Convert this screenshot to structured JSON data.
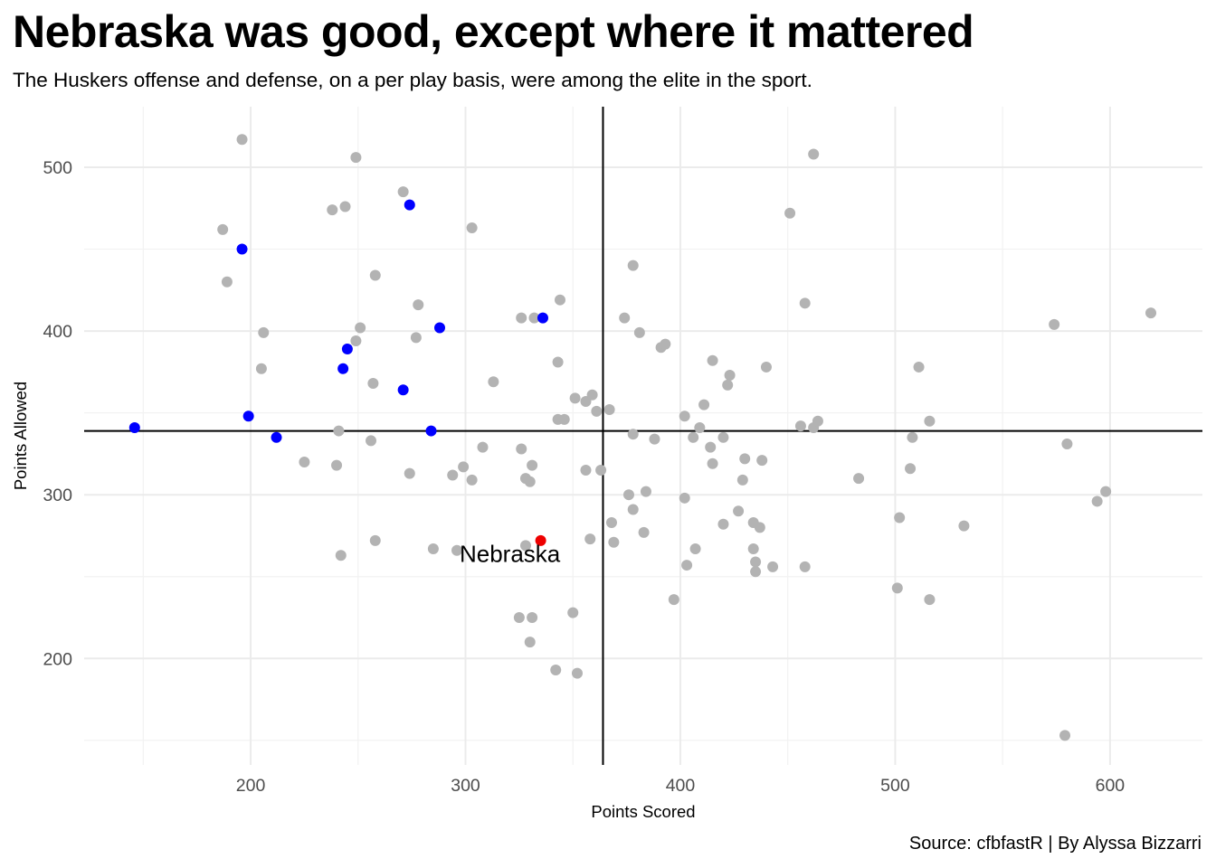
{
  "title": "Nebraska was good, except where it mattered",
  "subtitle": "The Huskers offense and defense, on a per play basis, were among the elite in the sport.",
  "caption": "Source: cfbfastR | By Alyssa Bizzarri",
  "colors": {
    "other_teams": "#b3b3b3",
    "highlight_teams": "#0000ff",
    "nebraska": "#ee0000",
    "reference_lines": "#000000",
    "grid_major": "#ebebeb",
    "grid_minor": "#f2f2f2"
  },
  "chart_data": {
    "type": "scatter",
    "xlabel": "Points Scored",
    "ylabel": "Points Allowed",
    "xlim": [
      122.5,
      643
    ],
    "ylim": [
      135,
      537
    ],
    "x_ticks": [
      200,
      300,
      400,
      500,
      600
    ],
    "y_ticks": [
      200,
      300,
      400,
      500
    ],
    "grid": true,
    "reference_lines": {
      "x": 364,
      "y": 339
    },
    "annotations": [
      {
        "text": "Nebraska",
        "x": 335,
        "y": 264
      }
    ],
    "series": [
      {
        "role": "other",
        "points": [
          [
            196,
            517
          ],
          [
            249,
            506
          ],
          [
            271,
            485
          ],
          [
            244,
            476
          ],
          [
            238,
            474
          ],
          [
            187,
            462
          ],
          [
            303,
            463
          ],
          [
            258,
            434
          ],
          [
            189,
            430
          ],
          [
            278,
            416
          ],
          [
            251,
            402
          ],
          [
            206,
            399
          ],
          [
            249,
            394
          ],
          [
            277,
            396
          ],
          [
            205,
            377
          ],
          [
            257,
            368
          ],
          [
            313,
            369
          ],
          [
            241,
            339
          ],
          [
            256,
            333
          ],
          [
            225,
            320
          ],
          [
            240,
            318
          ],
          [
            274,
            313
          ],
          [
            308,
            329
          ],
          [
            299,
            317
          ],
          [
            294,
            312
          ],
          [
            303,
            309
          ],
          [
            258,
            272
          ],
          [
            242,
            263
          ],
          [
            285,
            267
          ],
          [
            296,
            266
          ],
          [
            326,
            408
          ],
          [
            332,
            408
          ],
          [
            344,
            419
          ],
          [
            343,
            381
          ],
          [
            343,
            346
          ],
          [
            346,
            346
          ],
          [
            351,
            359
          ],
          [
            356,
            357
          ],
          [
            359,
            361
          ],
          [
            361,
            351
          ],
          [
            363,
            315
          ],
          [
            356,
            315
          ],
          [
            367,
            352
          ],
          [
            326,
            328
          ],
          [
            328,
            310
          ],
          [
            330,
            308
          ],
          [
            331,
            318
          ],
          [
            328,
            269
          ],
          [
            358,
            273
          ],
          [
            325,
            225
          ],
          [
            331,
            225
          ],
          [
            330,
            210
          ],
          [
            350,
            228
          ],
          [
            342,
            193
          ],
          [
            352,
            191
          ],
          [
            378,
            440
          ],
          [
            374,
            408
          ],
          [
            381,
            399
          ],
          [
            391,
            390
          ],
          [
            393,
            392
          ],
          [
            415,
            382
          ],
          [
            423,
            373
          ],
          [
            422,
            367
          ],
          [
            411,
            355
          ],
          [
            402,
            348
          ],
          [
            409,
            341
          ],
          [
            406,
            335
          ],
          [
            420,
            335
          ],
          [
            378,
            337
          ],
          [
            388,
            334
          ],
          [
            414,
            329
          ],
          [
            415,
            319
          ],
          [
            430,
            322
          ],
          [
            438,
            321
          ],
          [
            429,
            309
          ],
          [
            376,
            300
          ],
          [
            384,
            302
          ],
          [
            402,
            298
          ],
          [
            378,
            291
          ],
          [
            368,
            283
          ],
          [
            369,
            271
          ],
          [
            383,
            277
          ],
          [
            427,
            290
          ],
          [
            420,
            282
          ],
          [
            434,
            283
          ],
          [
            437,
            280
          ],
          [
            434,
            267
          ],
          [
            407,
            267
          ],
          [
            435,
            259
          ],
          [
            435,
            253
          ],
          [
            443,
            256
          ],
          [
            403,
            257
          ],
          [
            397,
            236
          ],
          [
            440,
            378
          ],
          [
            451,
            472
          ],
          [
            458,
            417
          ],
          [
            462,
            508
          ],
          [
            456,
            342
          ],
          [
            462,
            341
          ],
          [
            464,
            345
          ],
          [
            483,
            310
          ],
          [
            502,
            286
          ],
          [
            508,
            335
          ],
          [
            507,
            316
          ],
          [
            511,
            378
          ],
          [
            516,
            345
          ],
          [
            501,
            243
          ],
          [
            458,
            256
          ],
          [
            516,
            236
          ],
          [
            532,
            281
          ],
          [
            574,
            404
          ],
          [
            580,
            331
          ],
          [
            594,
            296
          ],
          [
            598,
            302
          ],
          [
            619,
            411
          ],
          [
            579,
            153
          ]
        ]
      },
      {
        "role": "highlight",
        "points": [
          [
            274,
            477
          ],
          [
            196,
            450
          ],
          [
            336,
            408
          ],
          [
            288,
            402
          ],
          [
            245,
            389
          ],
          [
            243,
            377
          ],
          [
            271,
            364
          ],
          [
            199,
            348
          ],
          [
            146,
            341
          ],
          [
            212,
            335
          ],
          [
            284,
            339
          ]
        ]
      },
      {
        "role": "nebraska",
        "points": [
          [
            335,
            272
          ]
        ]
      }
    ]
  }
}
